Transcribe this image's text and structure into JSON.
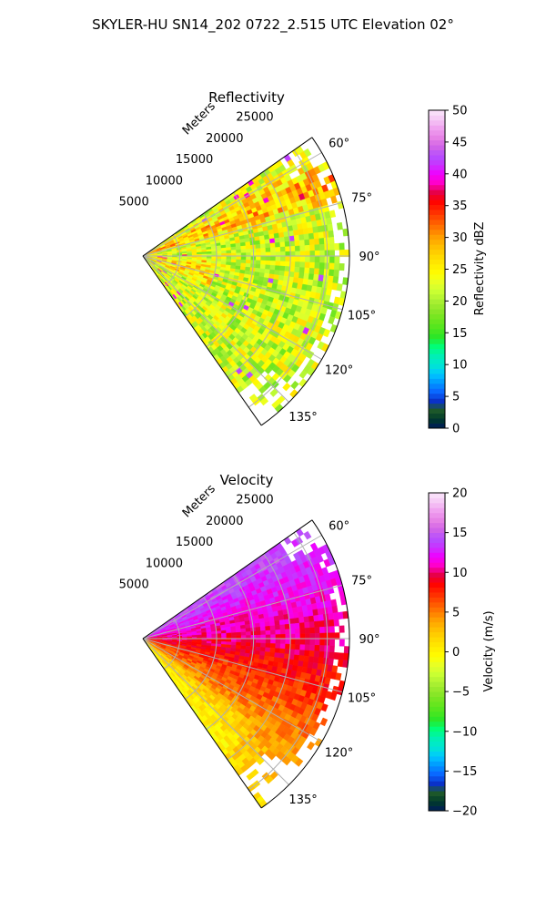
{
  "figure": {
    "suptitle": "SKYLER-HU  SN14_202  0722_2.515 UTC Elevation 02°"
  },
  "chart_data": [
    {
      "type": "heatmap",
      "projection": "polar-sector",
      "title": "Reflectivity",
      "range_axis_label": "Meters",
      "range_ticks": [
        5000,
        10000,
        15000,
        20000,
        25000
      ],
      "range_tick_labels": [
        "5000",
        "10000",
        "15000",
        "20000",
        "25000"
      ],
      "rmax": 28000,
      "theta_range_deg": [
        55,
        145
      ],
      "theta_ticks_deg": [
        60,
        75,
        90,
        105,
        120,
        135
      ],
      "theta_tick_labels": [
        "60°",
        "75°",
        "90°",
        "105°",
        "120°",
        "135°"
      ],
      "grid": true,
      "colorbar": {
        "label": "Reflectivity dBZ",
        "min": 0,
        "max": 50,
        "ticks": [
          0,
          5,
          10,
          15,
          20,
          25,
          30,
          35,
          40,
          45,
          50
        ],
        "tick_labels": [
          "0",
          "5",
          "10",
          "15",
          "20",
          "25",
          "30",
          "35",
          "40",
          "45",
          "50"
        ],
        "colors": [
          "#001a5c",
          "#003a2a",
          "#1f5a2a",
          "#0a32c8",
          "#0a64ff",
          "#0096ff",
          "#00c8ff",
          "#00e6d2",
          "#00f0b4",
          "#00ff78",
          "#28e628",
          "#50e61e",
          "#6ee61e",
          "#8ce628",
          "#aaf032",
          "#c8ff32",
          "#e6ff28",
          "#ffff00",
          "#ffeb00",
          "#ffd700",
          "#ffbe00",
          "#ffa000",
          "#ff7800",
          "#ff5000",
          "#ff2800",
          "#ff0000",
          "#e6004b",
          "#ff00c8",
          "#f000ff",
          "#c832ff",
          "#b450ff",
          "#d264e6",
          "#e682e6",
          "#f0a0f0",
          "#f5c8f5",
          "#fae6fa"
        ]
      },
      "data_summary": "Noisy reflectivity field, mostly 18-30 dBZ across the sector with higher values (28-34 dBZ) along a band near the 65-75° radials and scattered isolated 35-45 dBZ speckles."
    },
    {
      "type": "heatmap",
      "projection": "polar-sector",
      "title": "Velocity",
      "range_axis_label": "Meters",
      "range_ticks": [
        5000,
        10000,
        15000,
        20000,
        25000
      ],
      "range_tick_labels": [
        "5000",
        "10000",
        "15000",
        "20000",
        "25000"
      ],
      "rmax": 28000,
      "theta_range_deg": [
        55,
        145
      ],
      "theta_ticks_deg": [
        60,
        75,
        90,
        105,
        120,
        135
      ],
      "theta_tick_labels": [
        "60°",
        "75°",
        "90°",
        "105°",
        "120°",
        "135°"
      ],
      "grid": true,
      "colorbar": {
        "label": "Velocity (m/s)",
        "min": -20,
        "max": 20,
        "ticks": [
          -20,
          -15,
          -10,
          -5,
          0,
          5,
          10,
          15,
          20
        ],
        "tick_labels": [
          "−20",
          "−15",
          "−10",
          "−5",
          "0",
          "5",
          "10",
          "15",
          "20"
        ],
        "colors": [
          "#001a5c",
          "#003a2a",
          "#1f5a2a",
          "#0a32c8",
          "#0a64ff",
          "#0096ff",
          "#00c8ff",
          "#00e6d2",
          "#00f0b4",
          "#00ff78",
          "#28e628",
          "#50e61e",
          "#6ee61e",
          "#8ce628",
          "#aaf032",
          "#c8ff32",
          "#e6ff28",
          "#ffff00",
          "#ffeb00",
          "#ffd700",
          "#ffbe00",
          "#ffa000",
          "#ff7800",
          "#ff5000",
          "#ff2800",
          "#ff0000",
          "#e6004b",
          "#ff00c8",
          "#f000ff",
          "#c832ff",
          "#b450ff",
          "#d264e6",
          "#e682e6",
          "#f0a0f0",
          "#f5c8f5",
          "#fae6fa"
        ]
      },
      "data_summary": "Velocity increases from about 2-5 m/s at the 140° edge, through ~10 m/s near 90-95°, to 14-15 m/s at the 60-80° edge."
    }
  ]
}
